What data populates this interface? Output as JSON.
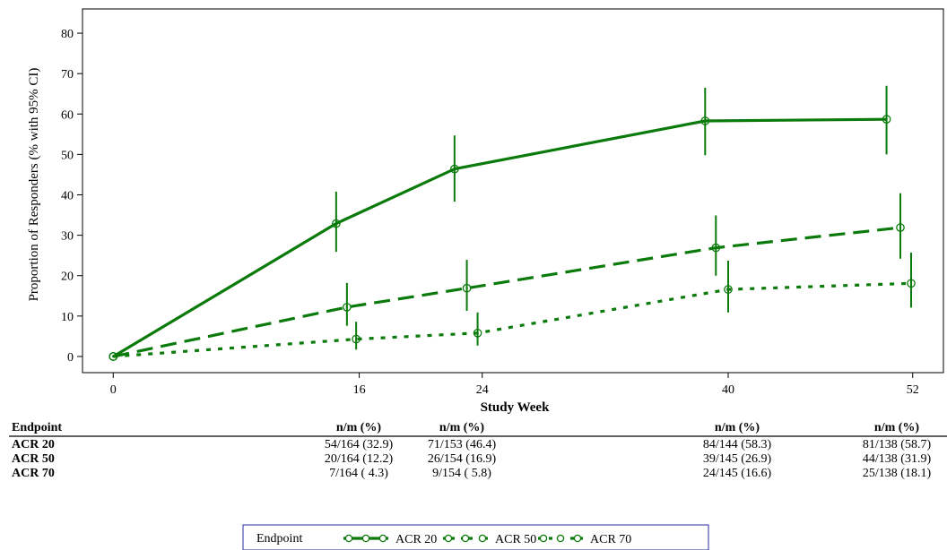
{
  "chart_data": {
    "type": "line",
    "title": "",
    "xlabel": "Study Week",
    "ylabel": "Proportion of Responders (% with 95% CI)",
    "ylim": [
      -4,
      86
    ],
    "yticks": [
      0,
      10,
      20,
      30,
      40,
      50,
      60,
      70,
      80
    ],
    "xlim": [
      -2,
      54
    ],
    "xticks": [
      0,
      16,
      24,
      40,
      52
    ],
    "grid": false,
    "legend_position": "bottom",
    "color": "#0a7a0a",
    "series": [
      {
        "name": "ACR 20",
        "style": "solid",
        "points": [
          {
            "x": 0,
            "y": 0,
            "lo": 0,
            "hi": 0
          },
          {
            "x": 14.5,
            "y": 32.9,
            "lo": 25.9,
            "hi": 40.8
          },
          {
            "x": 22.2,
            "y": 46.4,
            "lo": 38.3,
            "hi": 54.7
          },
          {
            "x": 38.5,
            "y": 58.3,
            "lo": 49.8,
            "hi": 66.5
          },
          {
            "x": 50.3,
            "y": 58.7,
            "lo": 50.0,
            "hi": 67.0
          }
        ]
      },
      {
        "name": "ACR 50",
        "style": "dashed",
        "points": [
          {
            "x": 0,
            "y": 0,
            "lo": 0,
            "hi": 0
          },
          {
            "x": 15.2,
            "y": 12.2,
            "lo": 7.6,
            "hi": 18.2
          },
          {
            "x": 23.0,
            "y": 16.9,
            "lo": 11.3,
            "hi": 23.9
          },
          {
            "x": 39.2,
            "y": 26.9,
            "lo": 20.0,
            "hi": 34.9
          },
          {
            "x": 51.2,
            "y": 31.9,
            "lo": 24.2,
            "hi": 40.4
          }
        ]
      },
      {
        "name": "ACR 70",
        "style": "dotted",
        "points": [
          {
            "x": 0,
            "y": 0,
            "lo": 0,
            "hi": 0
          },
          {
            "x": 15.8,
            "y": 4.3,
            "lo": 1.7,
            "hi": 8.6
          },
          {
            "x": 23.7,
            "y": 5.8,
            "lo": 2.7,
            "hi": 10.9
          },
          {
            "x": 40.0,
            "y": 16.6,
            "lo": 10.9,
            "hi": 23.7
          },
          {
            "x": 51.9,
            "y": 18.1,
            "lo": 12.1,
            "hi": 25.7
          }
        ]
      }
    ]
  },
  "table": {
    "header_label": "Endpoint",
    "column_header": "n/m (%)",
    "column_weeks": [
      16,
      24,
      40,
      52
    ],
    "rows": [
      {
        "label": "ACR 20",
        "cells": [
          "54/164 (32.9)",
          "71/153 (46.4)",
          "84/144 (58.3)",
          "81/138 (58.7)"
        ]
      },
      {
        "label": "ACR 50",
        "cells": [
          "20/164 (12.2)",
          "26/154 (16.9)",
          "39/145 (26.9)",
          "44/138 (31.9)"
        ]
      },
      {
        "label": "ACR 70",
        "cells": [
          "7/164 ( 4.3)",
          "9/154 ( 5.8)",
          "24/145 (16.6)",
          "25/138 (18.1)"
        ]
      }
    ]
  },
  "legend": {
    "title": "Endpoint",
    "items": [
      "ACR 20",
      "ACR 50",
      "ACR 70"
    ],
    "border_color": "#2a2aa0"
  }
}
